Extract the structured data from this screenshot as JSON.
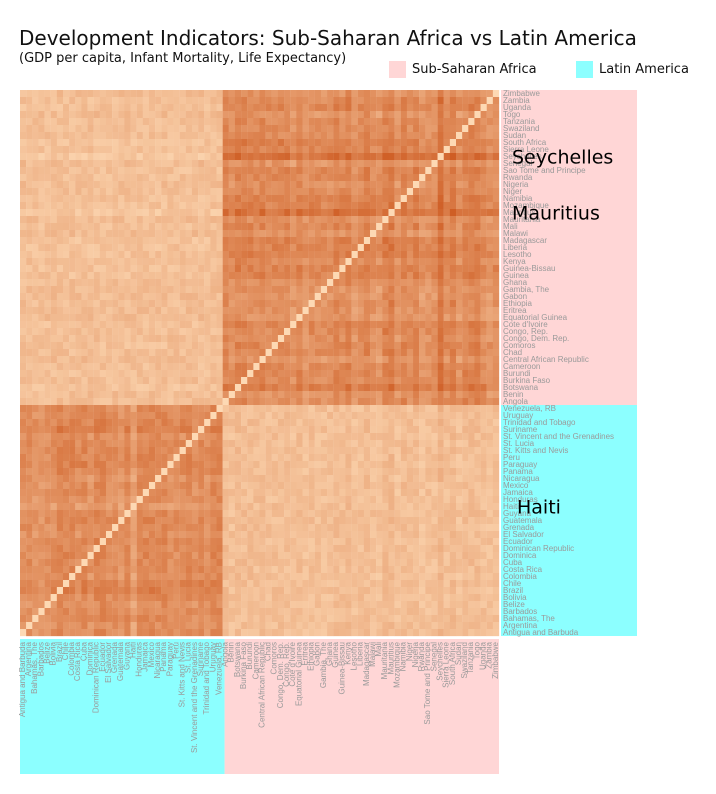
{
  "title": "Development Indicators: Sub-Saharan Africa vs Latin America",
  "subtitle": "(GDP per capita, Infant Mortality, Life Expectancy)",
  "legend": [
    {
      "label": "Sub-Saharan Africa",
      "color": "#ffd6d6"
    },
    {
      "label": "Latin America",
      "color": "#8cffff"
    }
  ],
  "colors": {
    "low": "#fdd9b4",
    "high": "#c44103",
    "africa_band": "#ffd6d6",
    "latam_band": "#8cffff",
    "country_label": "#9a9a9a"
  },
  "chart_data": {
    "type": "heatmap",
    "title": "Development Indicators: Sub-Saharan Africa vs Latin America",
    "subtitle": "(GDP per capita, Infant Mortality, Life Expectancy)",
    "rows_top_to_bottom": [
      "Zimbabwe",
      "Zambia",
      "Uganda",
      "Togo",
      "Tanzania",
      "Swaziland",
      "Sudan",
      "South Africa",
      "Sierra Leone",
      "Seychelles",
      "Senegal",
      "Sao Tome and Principe",
      "Rwanda",
      "Nigeria",
      "Niger",
      "Namibia",
      "Mozambique",
      "Mauritius",
      "Mauritania",
      "Mali",
      "Malawi",
      "Madagascar",
      "Liberia",
      "Lesotho",
      "Kenya",
      "Guinea-Bissau",
      "Guinea",
      "Ghana",
      "Gambia, The",
      "Gabon",
      "Ethiopia",
      "Eritrea",
      "Equatorial Guinea",
      "Cote d'Ivoire",
      "Congo, Rep.",
      "Congo, Dem. Rep.",
      "Comoros",
      "Chad",
      "Central African Republic",
      "Cameroon",
      "Burundi",
      "Burkina Faso",
      "Botswana",
      "Benin",
      "Angola",
      "Venezuela, RB",
      "Uruguay",
      "Trinidad and Tobago",
      "Suriname",
      "St. Vincent and the Grenadines",
      "St. Lucia",
      "St. Kitts and Nevis",
      "Peru",
      "Paraguay",
      "Panama",
      "Nicaragua",
      "Mexico",
      "Jamaica",
      "Honduras",
      "Haiti",
      "Guyana",
      "Guatemala",
      "Grenada",
      "El Salvador",
      "Ecuador",
      "Dominican Republic",
      "Dominica",
      "Cuba",
      "Costa Rica",
      "Colombia",
      "Chile",
      "Brazil",
      "Bolivia",
      "Belize",
      "Barbados",
      "Bahamas, The",
      "Argentina",
      "Antigua and Barbuda"
    ],
    "columns_left_to_right": [
      "Antigua and Barbuda",
      "Argentina",
      "Bahamas, The",
      "Barbados",
      "Belize",
      "Bolivia",
      "Brazil",
      "Chile",
      "Colombia",
      "Costa Rica",
      "Cuba",
      "Dominica",
      "Dominican Republic",
      "Ecuador",
      "El Salvador",
      "Grenada",
      "Guatemala",
      "Guyana",
      "Haiti",
      "Honduras",
      "Jamaica",
      "Mexico",
      "Nicaragua",
      "Panama",
      "Paraguay",
      "Peru",
      "St. Kitts and Nevis",
      "St. Lucia",
      "St. Vincent and the Grenadines",
      "Suriname",
      "Trinidad and Tobago",
      "Uruguay",
      "Venezuela, RB",
      "Angola",
      "Benin",
      "Botswana",
      "Burkina Faso",
      "Burundi",
      "Cameroon",
      "Central African Republic",
      "Chad",
      "Comoros",
      "Congo, Dem. Rep.",
      "Congo, Rep.",
      "Cote d'Ivoire",
      "Equatorial Guinea",
      "Eritrea",
      "Ethiopia",
      "Gabon",
      "Gambia, The",
      "Ghana",
      "Guinea",
      "Guinea-Bissau",
      "Kenya",
      "Lesotho",
      "Liberia",
      "Madagascar",
      "Malawi",
      "Mali",
      "Mauritania",
      "Mauritius",
      "Mozambique",
      "Namibia",
      "Niger",
      "Nigeria",
      "Rwanda",
      "Sao Tome and Principe",
      "Senegal",
      "Seychelles",
      "Sierra Leone",
      "South Africa",
      "Sudan",
      "Swaziland",
      "Tanzania",
      "Togo",
      "Uganda",
      "Zambia",
      "Zimbabwe"
    ],
    "row_groups": [
      {
        "name": "Sub-Saharan Africa",
        "count": 45
      },
      {
        "name": "Latin America",
        "count": 33
      }
    ],
    "column_groups": [
      {
        "name": "Latin America",
        "count": 33
      },
      {
        "name": "Sub-Saharan Africa",
        "count": 45
      }
    ],
    "highlighted_rows": [
      "Seychelles",
      "Mauritius",
      "Haiti"
    ],
    "cell_rule": "cells shade from light (similar countries) to dark (dissimilar countries)",
    "legend": [
      "Sub-Saharan Africa",
      "Latin America"
    ]
  }
}
